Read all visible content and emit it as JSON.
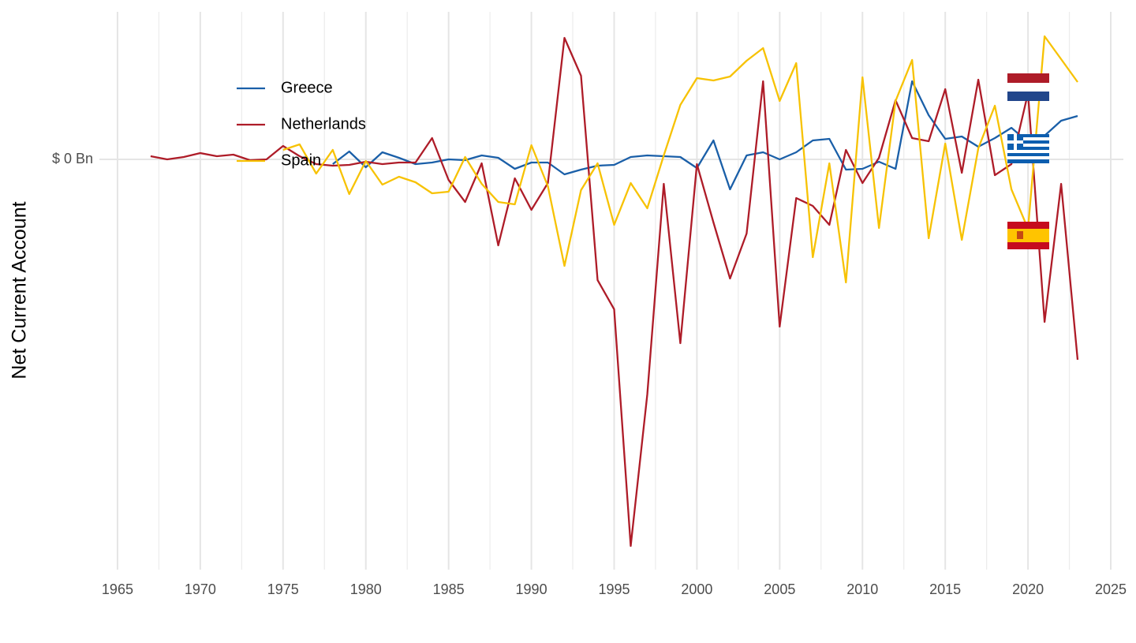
{
  "chart_data": {
    "type": "line",
    "y_label": "Net Current Account",
    "x": [
      1967,
      1968,
      1969,
      1970,
      1971,
      1972,
      1973,
      1974,
      1975,
      1976,
      1977,
      1978,
      1979,
      1980,
      1981,
      1982,
      1983,
      1984,
      1985,
      1986,
      1987,
      1988,
      1989,
      1990,
      1991,
      1992,
      1993,
      1994,
      1995,
      1996,
      1997,
      1998,
      1999,
      2000,
      2001,
      2002,
      2003,
      2004,
      2005,
      2006,
      2007,
      2008,
      2009,
      2010,
      2011,
      2012,
      2013,
      2014,
      2015,
      2016,
      2017,
      2018,
      2019,
      2020,
      2021,
      2022,
      2023
    ],
    "series": [
      {
        "name": "Greece",
        "color": "#1a5fa8",
        "values": [
          null,
          null,
          null,
          null,
          null,
          null,
          null,
          null,
          null,
          null,
          null,
          -0.6,
          1.0,
          -1.0,
          0.9,
          0.2,
          -0.6,
          -0.4,
          0,
          -0.1,
          0.5,
          0.2,
          -1.2,
          -0.4,
          -0.4,
          -1.9,
          -1.3,
          -0.8,
          -0.7,
          0.3,
          0.5,
          0.4,
          0.3,
          -1.1,
          2.4,
          -3.8,
          0.5,
          0.9,
          0,
          0.9,
          2.4,
          2.6,
          -1.3,
          -1.2,
          -0.3,
          -1.2,
          9.9,
          5.6,
          2.6,
          2.9,
          1.6,
          2.7,
          4.0,
          2.2,
          3.0,
          4.9,
          5.5
        ]
      },
      {
        "name": "Netherlands",
        "color": "#ae1c28",
        "values": [
          0.4,
          0,
          0.3,
          0.8,
          0.4,
          0.6,
          -0.1,
          0,
          1.7,
          0.4,
          -0.6,
          -0.8,
          -0.7,
          -0.3,
          -0.6,
          -0.4,
          -0.4,
          2.7,
          -2.6,
          -5.4,
          -0.5,
          -10.9,
          -2.4,
          -6.4,
          -3.0,
          15.4,
          10.6,
          -15.3,
          -19.0,
          -49.0,
          -29.8,
          -3.1,
          -23.3,
          -0.6,
          -8.0,
          -15.1,
          -9.4,
          9.9,
          -21.2,
          -4.9,
          -5.9,
          -8.3,
          1.2,
          -3.0,
          0.2,
          7.5,
          2.7,
          2.3,
          8.9,
          -1.7,
          10.1,
          -2.0,
          -0.6,
          8.4,
          -20.6,
          -3.1,
          -25.4
        ]
      },
      {
        "name": "Spain",
        "color": "#f7c203",
        "values": [
          null,
          null,
          null,
          null,
          null,
          null,
          null,
          null,
          1.2,
          1.9,
          -1.8,
          1.2,
          -4.4,
          -0.2,
          -3.2,
          -2.2,
          -2.9,
          -4.3,
          -4.1,
          0.3,
          -3.1,
          -5.4,
          -5.7,
          1.8,
          -3.4,
          -13.5,
          -3.9,
          -0.5,
          -8.3,
          -3.0,
          -6.2,
          0.5,
          6.9,
          10.3,
          10.0,
          10.5,
          12.5,
          14.1,
          7.4,
          12.2,
          -12.4,
          -0.5,
          -15.6,
          10.4,
          -8.7,
          7.4,
          12.6,
          -10.0,
          2.0,
          -10.2,
          1.4,
          6.8,
          -3.8,
          -8.8,
          15.6,
          12.7,
          9.8
        ]
      }
    ],
    "xlim": [
      1962,
      2026
    ],
    "xticks": [
      1965,
      1970,
      1975,
      1980,
      1985,
      1990,
      1995,
      2000,
      2005,
      2010,
      2015,
      2020,
      2025
    ],
    "ylim": [
      -52,
      18.7
    ],
    "yticks": [
      {
        "value": 0,
        "label": "$ 0 Bn"
      }
    ],
    "grid": true
  }
}
